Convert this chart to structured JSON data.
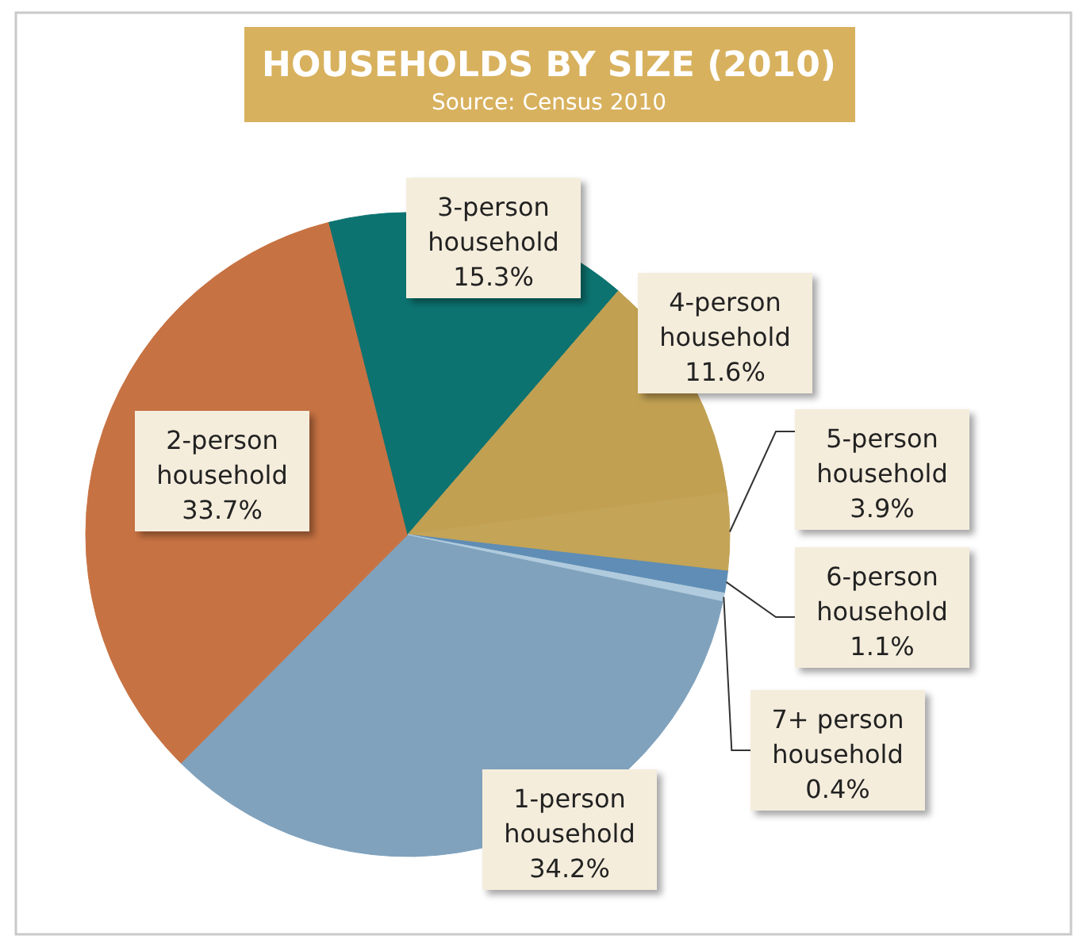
{
  "chart_data": {
    "type": "pie",
    "title": "HOUSEHOLDS BY SIZE (2010)",
    "subtitle": "Source: Census 2010",
    "categories": [
      "1-person household",
      "2-person household",
      "3-person household",
      "4-person household",
      "5-person household",
      "6-person household",
      "7+ person household"
    ],
    "values": [
      34.2,
      33.7,
      15.3,
      11.6,
      3.9,
      1.1,
      0.4
    ],
    "colors": [
      "#80a2bd",
      "#c77243",
      "#0c7370",
      "#c1a052",
      "#c4a457",
      "#5f8db5",
      "#b0cbdd"
    ],
    "value_labels": [
      "34.2%",
      "33.7%",
      "15.3%",
      "11.6%",
      "3.9%",
      "1.1%",
      "0.4%"
    ]
  }
}
